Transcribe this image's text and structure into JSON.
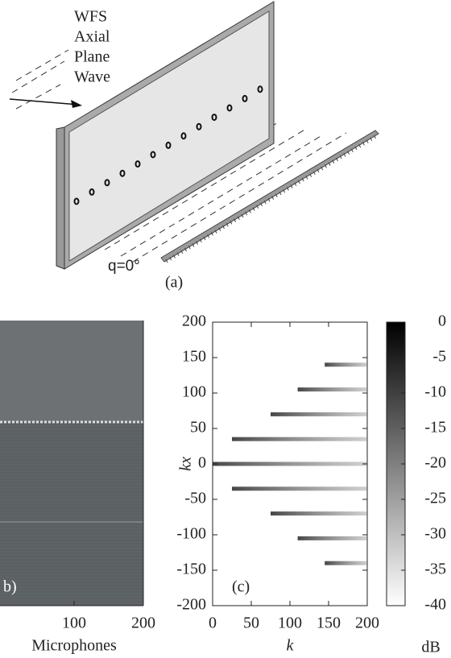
{
  "diagram": {
    "label_lines": [
      "WFS",
      "Axial",
      "Plane",
      "Wave"
    ],
    "angle_label": "q=0°",
    "caption": "(a)"
  },
  "chart_data": [
    {
      "type": "image",
      "caption": "b)",
      "xlabel": "Microphones",
      "xlim": [
        0,
        200
      ],
      "xticks": [
        100,
        200
      ]
    },
    {
      "type": "heatmap",
      "caption": "(c)",
      "xlabel": "k",
      "ylabel": "kx",
      "xlim": [
        0,
        200
      ],
      "ylim": [
        -200,
        200
      ],
      "xticks": [
        0,
        50,
        100,
        150,
        200
      ],
      "yticks": [
        200,
        150,
        100,
        50,
        0,
        -50,
        -100,
        -150,
        -200
      ],
      "streaks": [
        {
          "kx": 0,
          "k": [
            0,
            200
          ]
        },
        {
          "kx": 35,
          "k": [
            25,
            200
          ]
        },
        {
          "kx": -35,
          "k": [
            25,
            200
          ]
        },
        {
          "kx": 70,
          "k": [
            75,
            200
          ]
        },
        {
          "kx": -70,
          "k": [
            75,
            200
          ]
        },
        {
          "kx": 105,
          "k": [
            110,
            200
          ]
        },
        {
          "kx": -105,
          "k": [
            110,
            200
          ]
        },
        {
          "kx": 140,
          "k": [
            145,
            200
          ]
        },
        {
          "kx": -140,
          "k": [
            145,
            200
          ]
        }
      ],
      "colorbar": {
        "lim": [
          -40,
          0
        ],
        "ticks": [
          0,
          -5,
          -10,
          -15,
          -20,
          -25,
          -30,
          -35,
          -40
        ],
        "label": "dB"
      }
    }
  ]
}
